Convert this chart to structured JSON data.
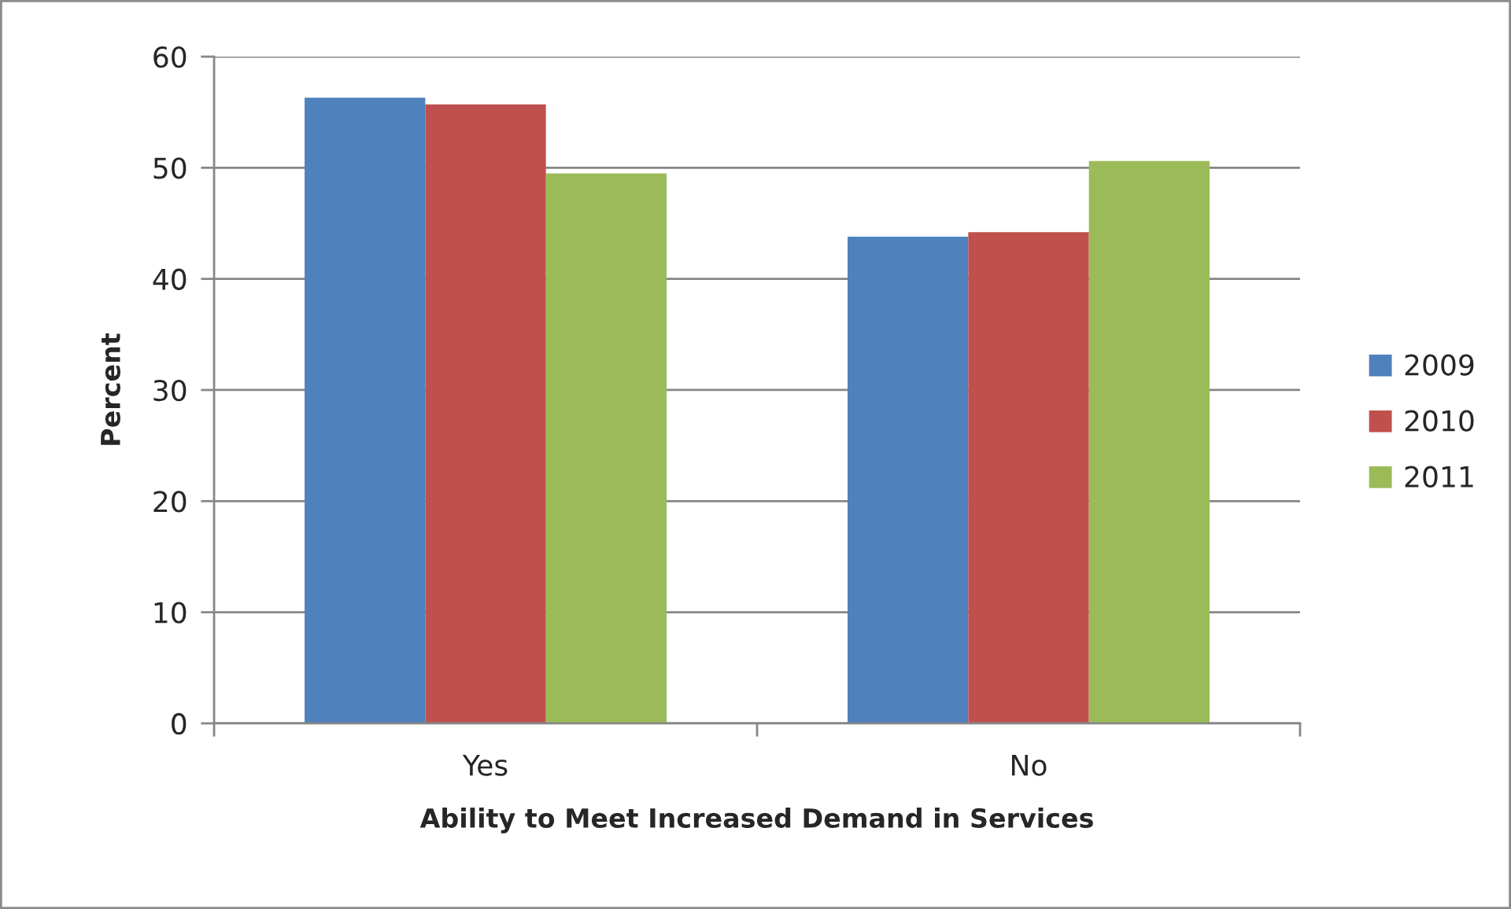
{
  "chart_data": {
    "type": "bar",
    "xlabel": "Ability to Meet Increased Demand in Services",
    "ylabel": "Percent",
    "categories": [
      "Yes",
      "No"
    ],
    "series": [
      {
        "name": "2009",
        "color": "#4f81bd",
        "values": [
          56.3,
          43.8
        ]
      },
      {
        "name": "2010",
        "color": "#c0504d",
        "values": [
          55.7,
          44.2
        ]
      },
      {
        "name": "2011",
        "color": "#9bbb59",
        "values": [
          49.5,
          50.6
        ]
      }
    ],
    "ylim": [
      0,
      60
    ],
    "yticks": [
      0,
      10,
      20,
      30,
      40,
      50,
      60
    ],
    "grid": "y",
    "legend": "right"
  }
}
